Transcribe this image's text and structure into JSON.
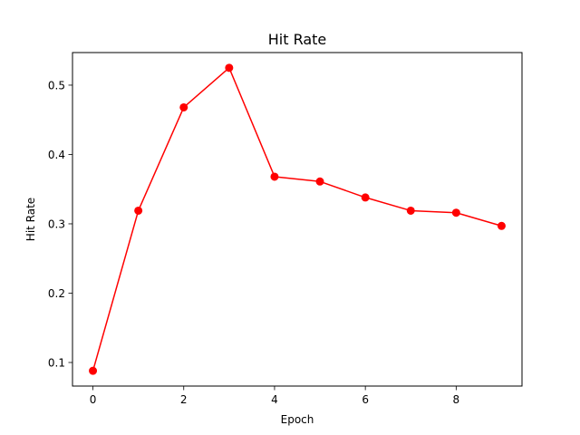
{
  "chart_data": {
    "type": "line",
    "title": "Hit Rate",
    "xlabel": "Epoch",
    "ylabel": "Hit Rate",
    "x": [
      0,
      1,
      2,
      3,
      4,
      5,
      6,
      7,
      8,
      9
    ],
    "series": [
      {
        "values": [
          0.088,
          0.319,
          0.468,
          0.525,
          0.368,
          0.361,
          0.338,
          0.319,
          0.316,
          0.297
        ],
        "color": "#ff0000",
        "marker": "circle"
      }
    ],
    "xlim": [
      -0.45,
      9.45
    ],
    "ylim": [
      0.066,
      0.547
    ],
    "xticks": [
      0,
      2,
      4,
      6,
      8
    ],
    "xtick_labels": [
      "0",
      "2",
      "4",
      "6",
      "8"
    ],
    "yticks": [
      0.1,
      0.2,
      0.3,
      0.4,
      0.5
    ],
    "ytick_labels": [
      "0.1",
      "0.2",
      "0.3",
      "0.4",
      "0.5"
    ],
    "grid": false,
    "legend": "none"
  }
}
